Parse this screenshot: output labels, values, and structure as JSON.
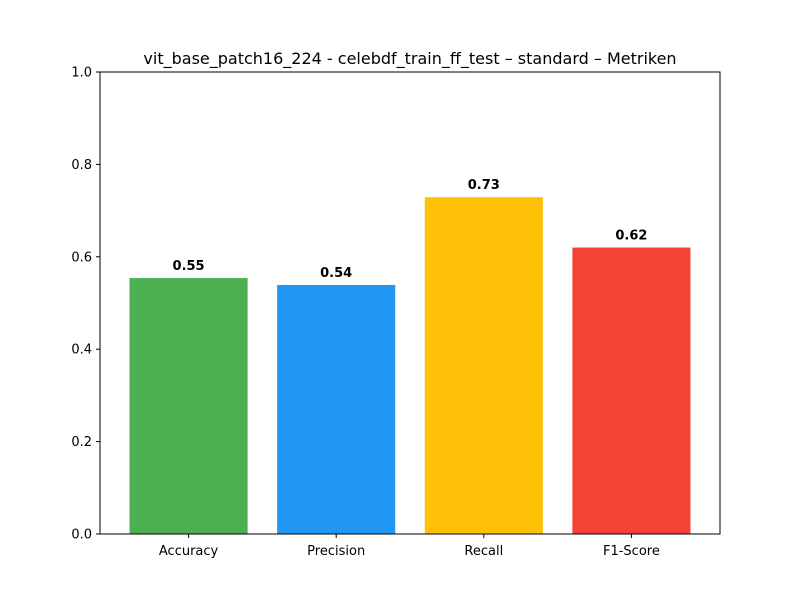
{
  "chart_data": {
    "type": "bar",
    "title": "vit_base_patch16_224 - celebdf_train_ff_test – standard – Metriken",
    "xlabel": "",
    "ylabel": "",
    "categories": [
      "Accuracy",
      "Precision",
      "Recall",
      "F1-Score"
    ],
    "values": [
      0.554,
      0.539,
      0.729,
      0.62
    ],
    "value_labels": [
      "0.55",
      "0.54",
      "0.73",
      "0.62"
    ],
    "colors": [
      "#4caf50",
      "#2196f3",
      "#ffc107",
      "#f44336"
    ],
    "ylim": [
      0,
      1.0
    ],
    "yticks": [
      0.0,
      0.2,
      0.4,
      0.6,
      0.8,
      1.0
    ],
    "ytick_labels": [
      "0.0",
      "0.2",
      "0.4",
      "0.6",
      "0.8",
      "1.0"
    ],
    "grid": false,
    "legend": "none"
  }
}
